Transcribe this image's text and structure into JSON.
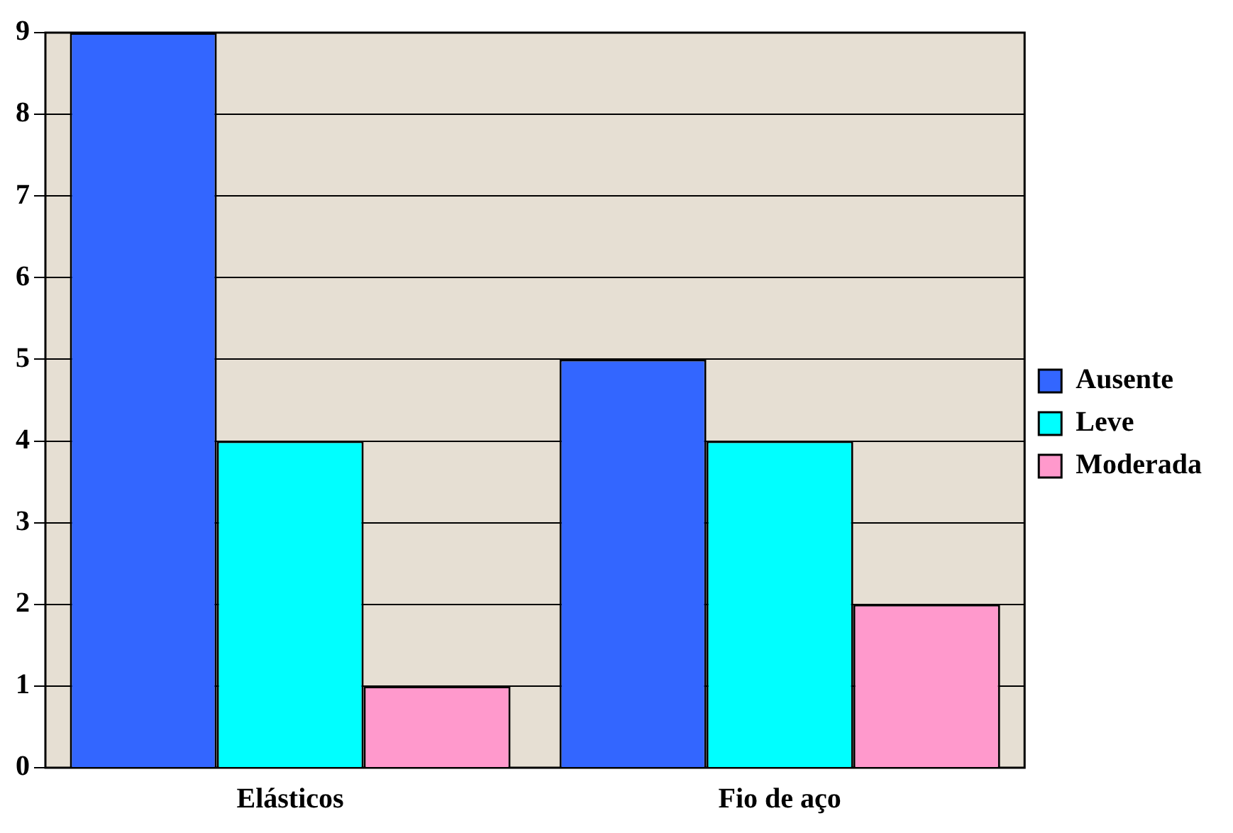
{
  "chart_data": {
    "type": "bar",
    "categories": [
      "Elásticos",
      "Fio de aço"
    ],
    "series": [
      {
        "name": "Ausente",
        "color": "#3366ff",
        "values": [
          9,
          5
        ]
      },
      {
        "name": "Leve",
        "color": "#00ffff",
        "values": [
          4,
          4
        ]
      },
      {
        "name": "Moderada",
        "color": "#ff99cc",
        "values": [
          1,
          2
        ]
      }
    ],
    "ylim": [
      0,
      9
    ],
    "yticks": [
      0,
      1,
      2,
      3,
      4,
      5,
      6,
      7,
      8,
      9
    ],
    "grid": "y",
    "legend": "right"
  }
}
